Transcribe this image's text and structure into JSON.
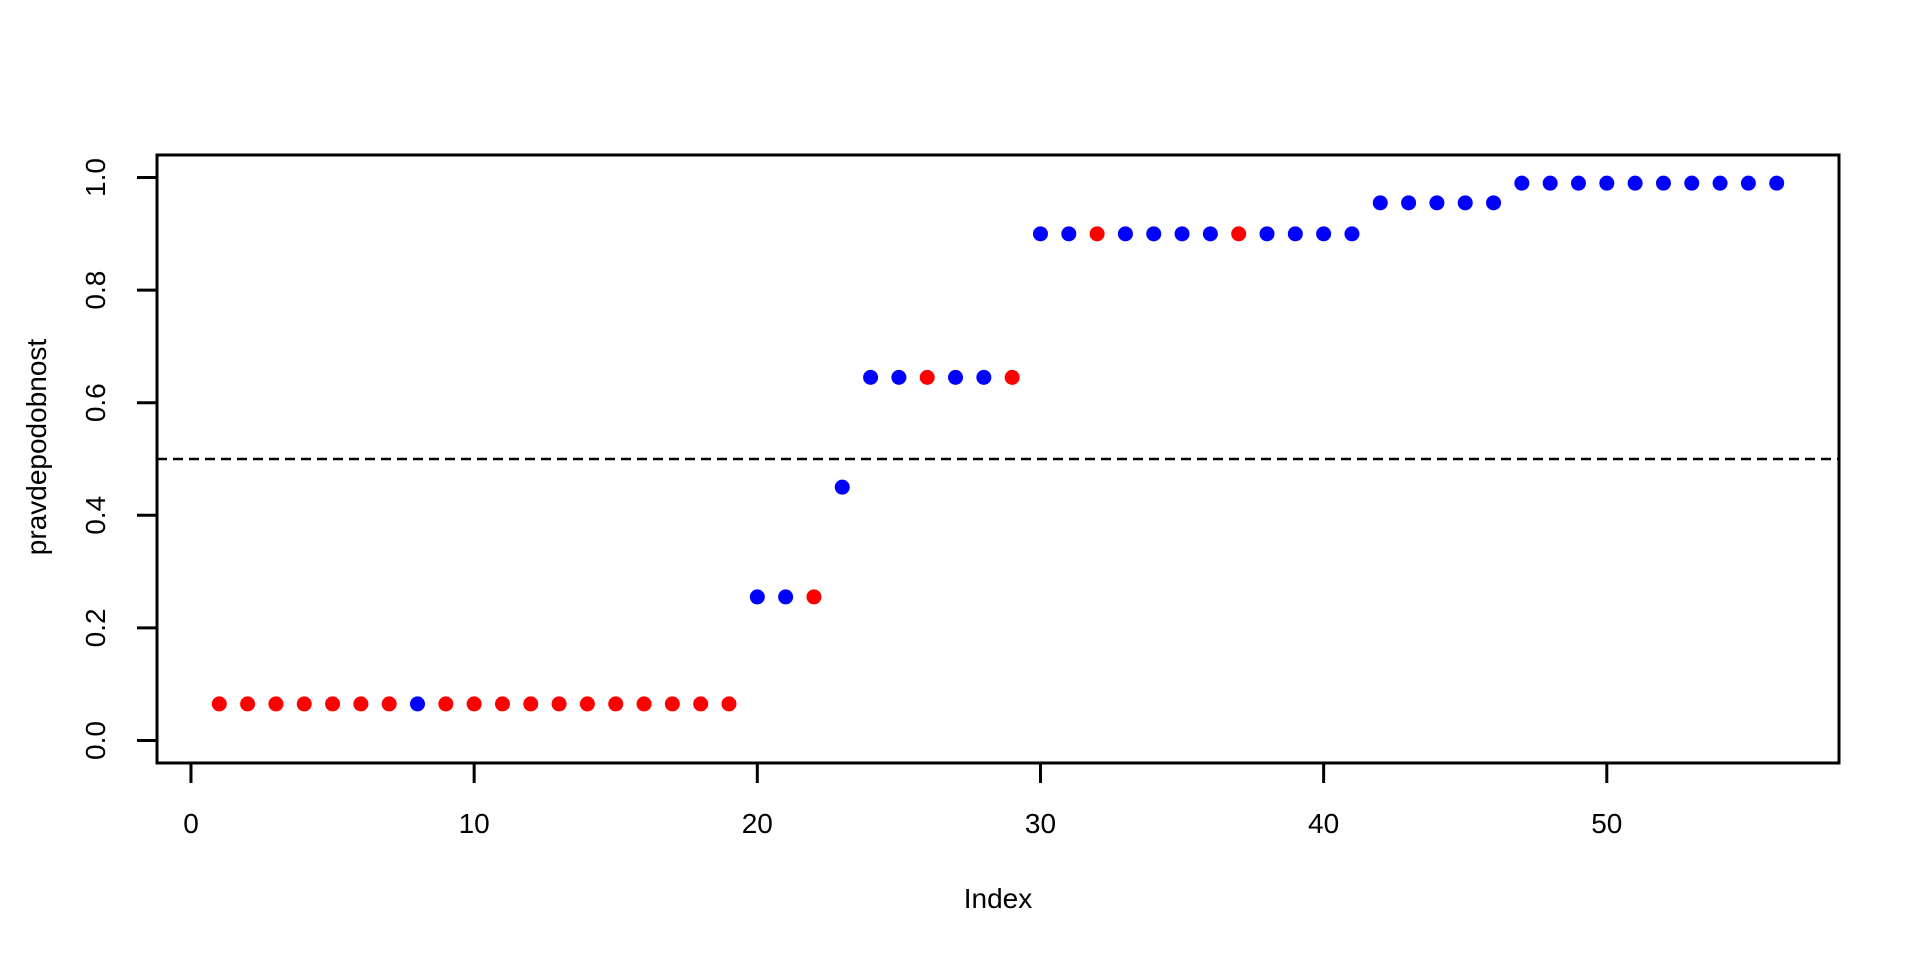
{
  "chart_data": {
    "type": "scatter",
    "title": "",
    "xlabel": "Index",
    "ylabel": "pravdepodobnost",
    "x_ticks": [
      0,
      10,
      20,
      30,
      40,
      50
    ],
    "y_ticks": [
      "0.0",
      "0.2",
      "0.4",
      "0.6",
      "0.8",
      "1.0"
    ],
    "xlim": [
      -1.2,
      58.2
    ],
    "ylim": [
      -0.04,
      1.04
    ],
    "grid": false,
    "legend": "none",
    "reference_line": {
      "y": 0.5,
      "style": "dashed",
      "color": "#000000"
    },
    "point_colors": {
      "r": "#FF0000",
      "b": "#0000FF"
    },
    "axis_color": "#000000",
    "background_color": "#FFFFFF",
    "points": [
      [
        1,
        0.065,
        "r"
      ],
      [
        2,
        0.065,
        "r"
      ],
      [
        3,
        0.065,
        "r"
      ],
      [
        4,
        0.065,
        "r"
      ],
      [
        5,
        0.065,
        "r"
      ],
      [
        6,
        0.065,
        "r"
      ],
      [
        7,
        0.065,
        "r"
      ],
      [
        8,
        0.065,
        "b"
      ],
      [
        9,
        0.065,
        "r"
      ],
      [
        10,
        0.065,
        "r"
      ],
      [
        11,
        0.065,
        "r"
      ],
      [
        12,
        0.065,
        "r"
      ],
      [
        13,
        0.065,
        "r"
      ],
      [
        14,
        0.065,
        "r"
      ],
      [
        15,
        0.065,
        "r"
      ],
      [
        16,
        0.065,
        "r"
      ],
      [
        17,
        0.065,
        "r"
      ],
      [
        18,
        0.065,
        "r"
      ],
      [
        19,
        0.065,
        "r"
      ],
      [
        20,
        0.255,
        "b"
      ],
      [
        21,
        0.255,
        "b"
      ],
      [
        22,
        0.255,
        "r"
      ],
      [
        23,
        0.45,
        "b"
      ],
      [
        24,
        0.645,
        "b"
      ],
      [
        25,
        0.645,
        "b"
      ],
      [
        26,
        0.645,
        "r"
      ],
      [
        27,
        0.645,
        "b"
      ],
      [
        28,
        0.645,
        "b"
      ],
      [
        29,
        0.645,
        "r"
      ],
      [
        30,
        0.9,
        "b"
      ],
      [
        31,
        0.9,
        "b"
      ],
      [
        32,
        0.9,
        "r"
      ],
      [
        33,
        0.9,
        "b"
      ],
      [
        34,
        0.9,
        "b"
      ],
      [
        35,
        0.9,
        "b"
      ],
      [
        36,
        0.9,
        "b"
      ],
      [
        37,
        0.9,
        "r"
      ],
      [
        38,
        0.9,
        "b"
      ],
      [
        39,
        0.9,
        "b"
      ],
      [
        40,
        0.9,
        "b"
      ],
      [
        41,
        0.9,
        "b"
      ],
      [
        42,
        0.955,
        "b"
      ],
      [
        43,
        0.955,
        "b"
      ],
      [
        44,
        0.955,
        "b"
      ],
      [
        45,
        0.955,
        "b"
      ],
      [
        46,
        0.955,
        "b"
      ],
      [
        47,
        0.99,
        "b"
      ],
      [
        48,
        0.99,
        "b"
      ],
      [
        49,
        0.99,
        "b"
      ],
      [
        50,
        0.99,
        "b"
      ],
      [
        51,
        0.99,
        "b"
      ],
      [
        52,
        0.99,
        "b"
      ],
      [
        53,
        0.99,
        "b"
      ],
      [
        54,
        0.99,
        "b"
      ],
      [
        55,
        0.99,
        "b"
      ],
      [
        56,
        0.99,
        "b"
      ]
    ]
  }
}
